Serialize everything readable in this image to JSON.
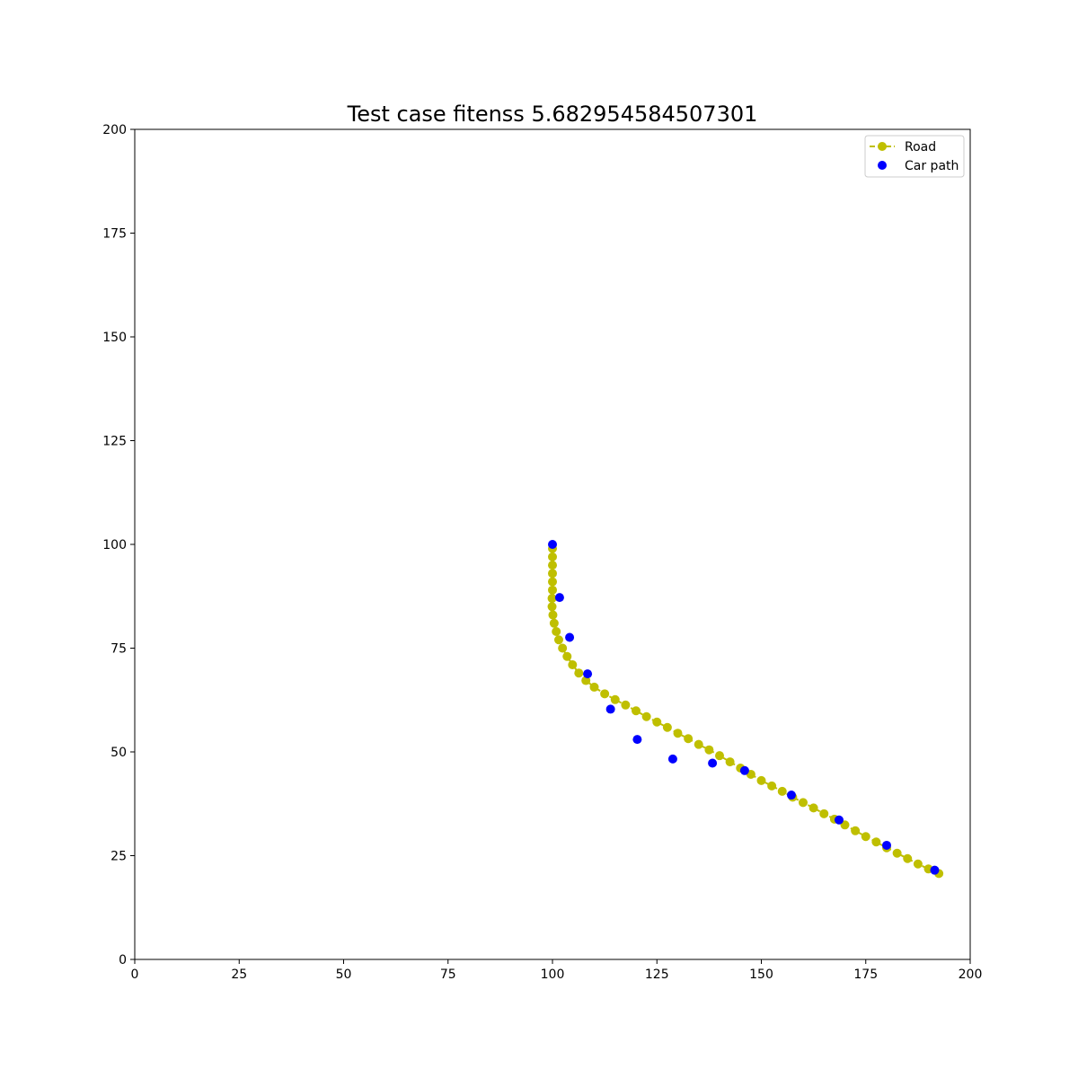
{
  "chart_data": {
    "type": "scatter",
    "title": "Test case fitenss 5.682954584507301",
    "xlabel": "",
    "ylabel": "",
    "xlim": [
      0,
      200
    ],
    "ylim": [
      0,
      200
    ],
    "xticks": [
      0,
      25,
      50,
      75,
      100,
      125,
      150,
      175,
      200
    ],
    "yticks": [
      0,
      25,
      50,
      75,
      100,
      125,
      150,
      175,
      200
    ],
    "grid": false,
    "legend_position": "top-right",
    "series": [
      {
        "name": "Road",
        "style": "dashed line with circle markers",
        "color": "#bfbf00",
        "points": [
          [
            100.0,
            99.0
          ],
          [
            100.0,
            97.0
          ],
          [
            100.0,
            95.0
          ],
          [
            100.0,
            93.0
          ],
          [
            100.0,
            91.0
          ],
          [
            100.0,
            89.0
          ],
          [
            99.9,
            87.0
          ],
          [
            99.9,
            85.0
          ],
          [
            100.1,
            83.0
          ],
          [
            100.4,
            81.0
          ],
          [
            100.9,
            79.0
          ],
          [
            101.5,
            77.0
          ],
          [
            102.4,
            75.0
          ],
          [
            103.5,
            73.0
          ],
          [
            104.8,
            71.0
          ],
          [
            106.3,
            69.0
          ],
          [
            108.0,
            67.2
          ],
          [
            110.0,
            65.6
          ],
          [
            112.5,
            64.0
          ],
          [
            115.0,
            62.6
          ],
          [
            117.5,
            61.3
          ],
          [
            120.0,
            59.9
          ],
          [
            122.5,
            58.5
          ],
          [
            125.0,
            57.2
          ],
          [
            127.5,
            55.9
          ],
          [
            130.0,
            54.5
          ],
          [
            132.5,
            53.2
          ],
          [
            135.0,
            51.8
          ],
          [
            137.5,
            50.5
          ],
          [
            140.0,
            49.1
          ],
          [
            142.5,
            47.6
          ],
          [
            145.0,
            46.1
          ],
          [
            147.5,
            44.6
          ],
          [
            150.0,
            43.1
          ],
          [
            152.5,
            41.8
          ],
          [
            155.0,
            40.5
          ],
          [
            157.5,
            39.1
          ],
          [
            160.0,
            37.8
          ],
          [
            162.5,
            36.5
          ],
          [
            165.0,
            35.1
          ],
          [
            167.5,
            33.8
          ],
          [
            170.0,
            32.4
          ],
          [
            172.5,
            31.0
          ],
          [
            175.0,
            29.6
          ],
          [
            177.5,
            28.3
          ],
          [
            180.0,
            26.9
          ],
          [
            182.5,
            25.6
          ],
          [
            185.0,
            24.3
          ],
          [
            187.5,
            23.0
          ],
          [
            190.0,
            21.8
          ],
          [
            192.5,
            20.7
          ]
        ]
      },
      {
        "name": "Car path",
        "style": "markers",
        "color": "#0000ff",
        "points": [
          [
            100.0,
            100.0
          ],
          [
            101.7,
            87.2
          ],
          [
            104.1,
            77.6
          ],
          [
            108.4,
            68.8
          ],
          [
            113.9,
            60.3
          ],
          [
            120.3,
            53.0
          ],
          [
            128.8,
            48.3
          ],
          [
            138.3,
            47.3
          ],
          [
            146.0,
            45.5
          ],
          [
            157.2,
            39.6
          ],
          [
            168.6,
            33.6
          ],
          [
            180.0,
            27.5
          ],
          [
            191.5,
            21.5
          ]
        ]
      }
    ]
  }
}
